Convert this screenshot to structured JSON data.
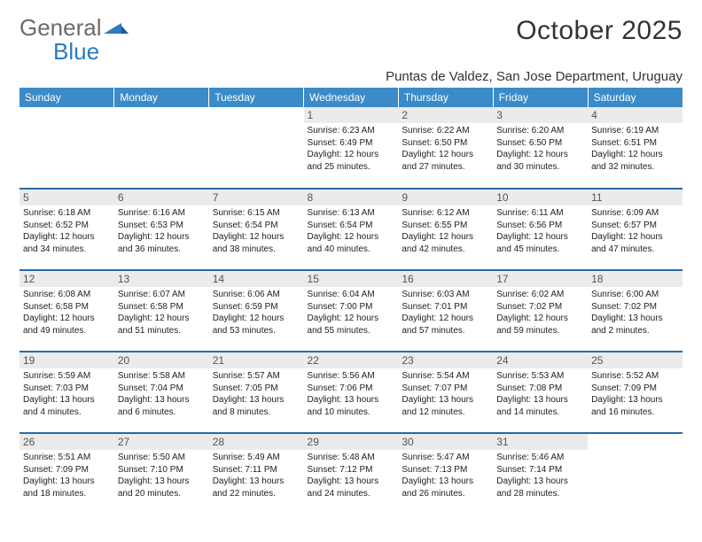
{
  "logo": {
    "text1": "General",
    "text2": "Blue"
  },
  "title": "October 2025",
  "location": "Puntas de Valdez, San Jose Department, Uruguay",
  "colors": {
    "header_bg": "#3b8bc8",
    "header_text": "#ffffff",
    "row_divider": "#2968a3",
    "daynum_bg": "#ebebeb",
    "logo_gray": "#6b6b6b",
    "logo_blue": "#2a7bbf"
  },
  "day_headers": [
    "Sunday",
    "Monday",
    "Tuesday",
    "Wednesday",
    "Thursday",
    "Friday",
    "Saturday"
  ],
  "weeks": [
    [
      {
        "n": "",
        "sr": "",
        "ss": "",
        "dl": ""
      },
      {
        "n": "",
        "sr": "",
        "ss": "",
        "dl": ""
      },
      {
        "n": "",
        "sr": "",
        "ss": "",
        "dl": ""
      },
      {
        "n": "1",
        "sr": "6:23 AM",
        "ss": "6:49 PM",
        "dl": "12 hours and 25 minutes."
      },
      {
        "n": "2",
        "sr": "6:22 AM",
        "ss": "6:50 PM",
        "dl": "12 hours and 27 minutes."
      },
      {
        "n": "3",
        "sr": "6:20 AM",
        "ss": "6:50 PM",
        "dl": "12 hours and 30 minutes."
      },
      {
        "n": "4",
        "sr": "6:19 AM",
        "ss": "6:51 PM",
        "dl": "12 hours and 32 minutes."
      }
    ],
    [
      {
        "n": "5",
        "sr": "6:18 AM",
        "ss": "6:52 PM",
        "dl": "12 hours and 34 minutes."
      },
      {
        "n": "6",
        "sr": "6:16 AM",
        "ss": "6:53 PM",
        "dl": "12 hours and 36 minutes."
      },
      {
        "n": "7",
        "sr": "6:15 AM",
        "ss": "6:54 PM",
        "dl": "12 hours and 38 minutes."
      },
      {
        "n": "8",
        "sr": "6:13 AM",
        "ss": "6:54 PM",
        "dl": "12 hours and 40 minutes."
      },
      {
        "n": "9",
        "sr": "6:12 AM",
        "ss": "6:55 PM",
        "dl": "12 hours and 42 minutes."
      },
      {
        "n": "10",
        "sr": "6:11 AM",
        "ss": "6:56 PM",
        "dl": "12 hours and 45 minutes."
      },
      {
        "n": "11",
        "sr": "6:09 AM",
        "ss": "6:57 PM",
        "dl": "12 hours and 47 minutes."
      }
    ],
    [
      {
        "n": "12",
        "sr": "6:08 AM",
        "ss": "6:58 PM",
        "dl": "12 hours and 49 minutes."
      },
      {
        "n": "13",
        "sr": "6:07 AM",
        "ss": "6:58 PM",
        "dl": "12 hours and 51 minutes."
      },
      {
        "n": "14",
        "sr": "6:06 AM",
        "ss": "6:59 PM",
        "dl": "12 hours and 53 minutes."
      },
      {
        "n": "15",
        "sr": "6:04 AM",
        "ss": "7:00 PM",
        "dl": "12 hours and 55 minutes."
      },
      {
        "n": "16",
        "sr": "6:03 AM",
        "ss": "7:01 PM",
        "dl": "12 hours and 57 minutes."
      },
      {
        "n": "17",
        "sr": "6:02 AM",
        "ss": "7:02 PM",
        "dl": "12 hours and 59 minutes."
      },
      {
        "n": "18",
        "sr": "6:00 AM",
        "ss": "7:02 PM",
        "dl": "13 hours and 2 minutes."
      }
    ],
    [
      {
        "n": "19",
        "sr": "5:59 AM",
        "ss": "7:03 PM",
        "dl": "13 hours and 4 minutes."
      },
      {
        "n": "20",
        "sr": "5:58 AM",
        "ss": "7:04 PM",
        "dl": "13 hours and 6 minutes."
      },
      {
        "n": "21",
        "sr": "5:57 AM",
        "ss": "7:05 PM",
        "dl": "13 hours and 8 minutes."
      },
      {
        "n": "22",
        "sr": "5:56 AM",
        "ss": "7:06 PM",
        "dl": "13 hours and 10 minutes."
      },
      {
        "n": "23",
        "sr": "5:54 AM",
        "ss": "7:07 PM",
        "dl": "13 hours and 12 minutes."
      },
      {
        "n": "24",
        "sr": "5:53 AM",
        "ss": "7:08 PM",
        "dl": "13 hours and 14 minutes."
      },
      {
        "n": "25",
        "sr": "5:52 AM",
        "ss": "7:09 PM",
        "dl": "13 hours and 16 minutes."
      }
    ],
    [
      {
        "n": "26",
        "sr": "5:51 AM",
        "ss": "7:09 PM",
        "dl": "13 hours and 18 minutes."
      },
      {
        "n": "27",
        "sr": "5:50 AM",
        "ss": "7:10 PM",
        "dl": "13 hours and 20 minutes."
      },
      {
        "n": "28",
        "sr": "5:49 AM",
        "ss": "7:11 PM",
        "dl": "13 hours and 22 minutes."
      },
      {
        "n": "29",
        "sr": "5:48 AM",
        "ss": "7:12 PM",
        "dl": "13 hours and 24 minutes."
      },
      {
        "n": "30",
        "sr": "5:47 AM",
        "ss": "7:13 PM",
        "dl": "13 hours and 26 minutes."
      },
      {
        "n": "31",
        "sr": "5:46 AM",
        "ss": "7:14 PM",
        "dl": "13 hours and 28 minutes."
      },
      {
        "n": "",
        "sr": "",
        "ss": "",
        "dl": ""
      }
    ]
  ],
  "labels": {
    "sunrise": "Sunrise:",
    "sunset": "Sunset:",
    "daylight": "Daylight:"
  }
}
